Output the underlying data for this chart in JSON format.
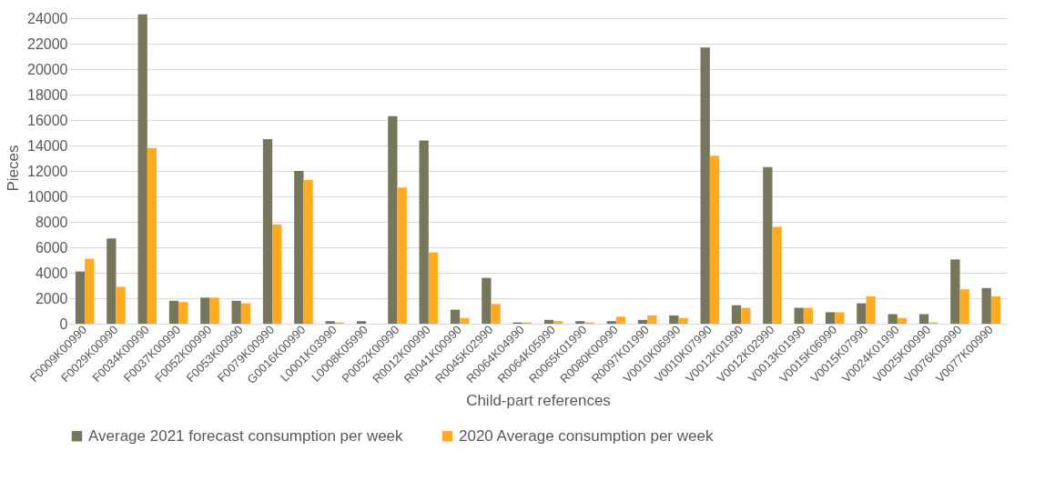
{
  "chart_data": {
    "type": "bar",
    "xlabel": "Child-part references",
    "ylabel": "Pieces",
    "categories": [
      "F0009K00990",
      "F0029K00990",
      "F0034K00990",
      "F0037K00990",
      "F0052K00990",
      "F0053K00990",
      "F0079K00990",
      "G0016K00990",
      "L0001K03990",
      "L0008K05990",
      "P0052K00990",
      "R0012K00990",
      "R0041K00990",
      "R0045K02990",
      "R0064K04990",
      "R0064K05990",
      "R0065K01990",
      "R0080K00990",
      "R0097K01990",
      "V0010K06990",
      "V0010K07990",
      "V0012K01990",
      "V0012K02990",
      "V0013K01990",
      "V0015K06990",
      "V0015K07990",
      "V0024K01990",
      "V0025K00990",
      "V0076K00990",
      "V0077K00990"
    ],
    "series": [
      {
        "name": "Average 2021 forecast consumption per week",
        "color": "#77765b",
        "values": [
          4100,
          6700,
          24300,
          1800,
          2050,
          1800,
          14500,
          12000,
          200,
          200,
          16300,
          14400,
          1100,
          3600,
          100,
          300,
          200,
          200,
          300,
          650,
          21700,
          1450,
          12300,
          1250,
          900,
          1600,
          750,
          750,
          5050,
          2800
        ]
      },
      {
        "name": "2020 Average consumption per week",
        "color": "#ffab22",
        "values": [
          5100,
          2900,
          13800,
          1700,
          2050,
          1600,
          7800,
          11300,
          100,
          null,
          10700,
          5600,
          450,
          1550,
          100,
          200,
          100,
          550,
          650,
          450,
          13200,
          1250,
          7600,
          1250,
          900,
          2150,
          450,
          100,
          2700,
          2150
        ]
      }
    ],
    "ylim": [
      0,
      24500
    ],
    "yticks": [
      0,
      2000,
      4000,
      6000,
      8000,
      10000,
      12000,
      14000,
      16000,
      18000,
      20000,
      22000,
      24000
    ],
    "grid": "y",
    "legend": "bottom"
  }
}
